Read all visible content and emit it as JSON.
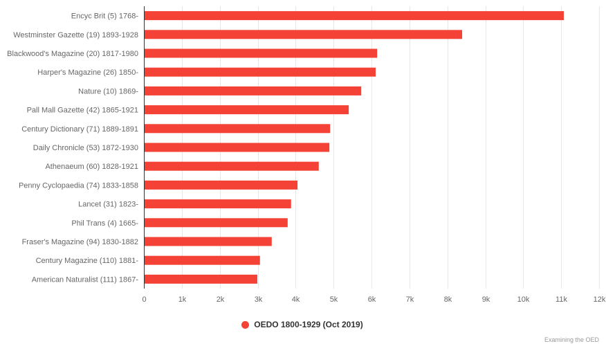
{
  "chart_data": {
    "type": "bar",
    "orientation": "horizontal",
    "title": "",
    "xlabel": "",
    "ylabel": "",
    "categories": [
      "Encyc Brit (5) 1768-",
      "Westminster Gazette (19) 1893-1928",
      "Blackwood's Magazine (20) 1817-1980",
      "Harper's Magazine (26) 1850-",
      "Nature (10) 1869-",
      "Pall Mall Gazette (42) 1865-1921",
      "Century Dictionary (71) 1889-1891",
      "Daily Chronicle (53) 1872-1930",
      "Athenaeum (60) 1828-1921",
      "Penny Cyclopaedia (74) 1833-1858",
      "Lancet (31) 1823-",
      "Phil Trans (4) 1665-",
      "Fraser's Magazine (94) 1830-1882",
      "Century Magazine (110) 1881-",
      "American Naturalist (111) 1867-"
    ],
    "series": [
      {
        "name": "OEDO 1800-1929 (Oct 2019)",
        "color": "#f44336",
        "values": [
          11070,
          8390,
          6150,
          6110,
          5730,
          5400,
          4910,
          4890,
          4610,
          4050,
          3880,
          3790,
          3370,
          3060,
          2990
        ]
      }
    ],
    "xlim": [
      0,
      12000
    ],
    "ticks": [
      0,
      1000,
      2000,
      3000,
      4000,
      5000,
      6000,
      7000,
      8000,
      9000,
      10000,
      11000,
      12000
    ],
    "tick_labels": [
      "0",
      "1k",
      "2k",
      "3k",
      "4k",
      "5k",
      "6k",
      "7k",
      "8k",
      "9k",
      "10k",
      "11k",
      "12k"
    ],
    "grid": true,
    "legend_position": "bottom-center"
  },
  "legend": {
    "label": "OEDO 1800-1929 (Oct 2019)",
    "color": "#f44336"
  },
  "credit": "Examining the OED",
  "colors": {
    "bar": "#f44336",
    "grid": "#e6e6e6",
    "axis": "#333333",
    "text": "#666666"
  }
}
